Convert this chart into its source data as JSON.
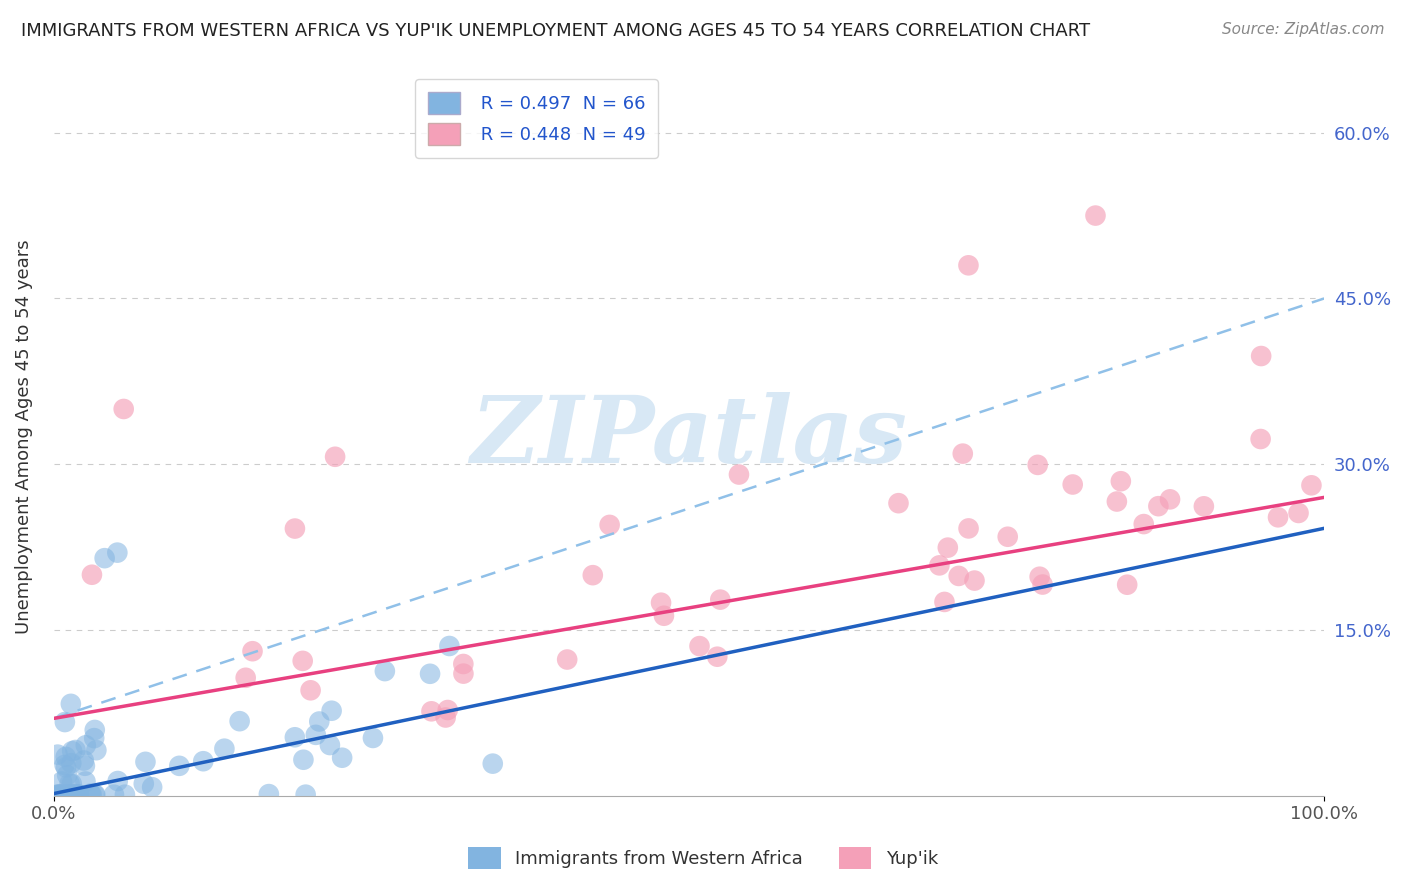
{
  "title": "IMMIGRANTS FROM WESTERN AFRICA VS YUP'IK UNEMPLOYMENT AMONG AGES 45 TO 54 YEARS CORRELATION CHART",
  "source": "Source: ZipAtlas.com",
  "ylabel": "Unemployment Among Ages 45 to 54 years",
  "xlabel": "",
  "xlim": [
    0.0,
    1.0
  ],
  "ylim": [
    0.0,
    0.65
  ],
  "ytick_positions": [
    0.15,
    0.3,
    0.45,
    0.6
  ],
  "ytick_labels_right": [
    "15.0%",
    "30.0%",
    "45.0%",
    "60.0%"
  ],
  "xtick_positions": [
    0.0,
    1.0
  ],
  "xtick_labels": [
    "0.0%",
    "100.0%"
  ],
  "legend_r1": "R = 0.497  N = 66",
  "legend_r2": "R = 0.448  N = 49",
  "legend_label1": "Immigrants from Western Africa",
  "legend_label2": "Yup'ik",
  "color_blue": "#82b4e0",
  "color_pink": "#f4a0b8",
  "color_blue_line": "#2060c0",
  "color_pink_line": "#e84080",
  "color_blue_dashed": "#90c0e8",
  "watermark_text": "ZIPatlas",
  "watermark_color": "#d8e8f5",
  "background_color": "#ffffff",
  "grid_color": "#cccccc",
  "blue_trend_intercept": 0.002,
  "blue_trend_slope": 0.24,
  "pink_trend_intercept": 0.07,
  "pink_trend_slope": 0.2,
  "blue_dashed_intercept": 0.07,
  "blue_dashed_slope": 0.38
}
